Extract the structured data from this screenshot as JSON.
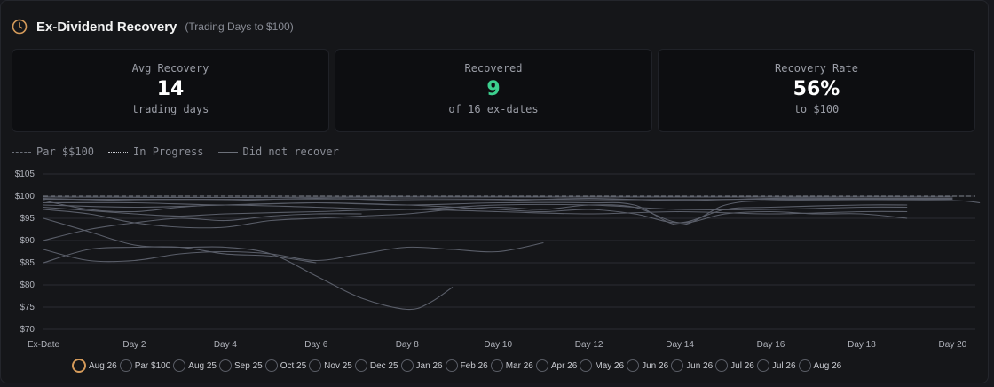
{
  "header": {
    "title": "Ex-Dividend Recovery",
    "subtitle": "(Trading Days to $100)",
    "icon": "clock-icon",
    "icon_color": "#d49a5a"
  },
  "cards": [
    {
      "label": "Avg Recovery",
      "value": "14",
      "sub": "trading days",
      "value_color": "#ffffff"
    },
    {
      "label": "Recovered",
      "value": "9",
      "sub": "of 16 ex-dates",
      "value_color": "#3ccf8e"
    },
    {
      "label": "Recovery Rate",
      "value": "56%",
      "sub": "to $100",
      "value_color": "#ffffff"
    }
  ],
  "legend": [
    {
      "label": "Par $$100",
      "style": "dashed"
    },
    {
      "label": "In Progress",
      "style": "dotted"
    },
    {
      "label": "Did not recover",
      "style": "solid"
    }
  ],
  "chart_data": {
    "type": "line",
    "ylim": [
      70,
      105
    ],
    "yticks": [
      "$105",
      "$100",
      "$95",
      "$90",
      "$85",
      "$80",
      "$75",
      "$70"
    ],
    "xlim": [
      0,
      20.5
    ],
    "xticks": [
      {
        "x": 0,
        "label": "Ex-Date"
      },
      {
        "x": 2,
        "label": "Day 2"
      },
      {
        "x": 4,
        "label": "Day 4"
      },
      {
        "x": 6,
        "label": "Day 6"
      },
      {
        "x": 8,
        "label": "Day 8"
      },
      {
        "x": 10,
        "label": "Day 10"
      },
      {
        "x": 12,
        "label": "Day 12"
      },
      {
        "x": 14,
        "label": "Day 14"
      },
      {
        "x": 16,
        "label": "Day 16"
      },
      {
        "x": 18,
        "label": "Day 18"
      },
      {
        "x": 20,
        "label": "Day 20"
      }
    ],
    "par": 100,
    "series": [
      {
        "values": [
          [
            0,
            95
          ],
          [
            1,
            92
          ],
          [
            2,
            89
          ],
          [
            3,
            88.5
          ],
          [
            4,
            88.5
          ],
          [
            5,
            87
          ],
          [
            6,
            82
          ],
          [
            7,
            77
          ],
          [
            8,
            74.5
          ],
          [
            8.5,
            76
          ],
          [
            9,
            79.5
          ]
        ]
      },
      {
        "values": [
          [
            0,
            88
          ],
          [
            1,
            85.5
          ],
          [
            2,
            85.5
          ],
          [
            3,
            87
          ],
          [
            4,
            87.5
          ],
          [
            5,
            87
          ],
          [
            6,
            85.5
          ],
          [
            7,
            87
          ],
          [
            8,
            88.5
          ],
          [
            9,
            88
          ],
          [
            10,
            87.5
          ],
          [
            11,
            89.5
          ]
        ]
      },
      {
        "values": [
          [
            0,
            85
          ],
          [
            1,
            88
          ],
          [
            2,
            88.5
          ],
          [
            3,
            88.5
          ],
          [
            4,
            87
          ],
          [
            5,
            86.5
          ],
          [
            6,
            85
          ]
        ]
      },
      {
        "values": [
          [
            0,
            90
          ],
          [
            1,
            92.5
          ],
          [
            2,
            94
          ],
          [
            3,
            95
          ],
          [
            4,
            94.5
          ],
          [
            5,
            95.5
          ],
          [
            6,
            96
          ],
          [
            7,
            96
          ]
        ]
      },
      {
        "values": [
          [
            0,
            97
          ],
          [
            1,
            96
          ],
          [
            2,
            94
          ],
          [
            3,
            93
          ],
          [
            4,
            93
          ],
          [
            5,
            94.5
          ],
          [
            6,
            95
          ],
          [
            7,
            95.5
          ],
          [
            8,
            96
          ],
          [
            9,
            97
          ],
          [
            10,
            97.5
          ],
          [
            11,
            97
          ],
          [
            12,
            98
          ],
          [
            13,
            97.5
          ],
          [
            14,
            94
          ],
          [
            15,
            96
          ],
          [
            16,
            96.5
          ],
          [
            17,
            96
          ],
          [
            18,
            96
          ],
          [
            19,
            95
          ]
        ]
      },
      {
        "values": [
          [
            0,
            98
          ],
          [
            2,
            97.5
          ],
          [
            4,
            98
          ],
          [
            6,
            98.5
          ],
          [
            8,
            98
          ],
          [
            10,
            98.5
          ],
          [
            12,
            98.5
          ],
          [
            13,
            98
          ],
          [
            14,
            93.5
          ],
          [
            15,
            98
          ],
          [
            16,
            99
          ],
          [
            18,
            99
          ],
          [
            20,
            99
          ],
          [
            21,
            98.5
          ]
        ]
      },
      {
        "values": [
          [
            0,
            99.5
          ],
          [
            2,
            99
          ],
          [
            4,
            99
          ],
          [
            6,
            99.5
          ],
          [
            8,
            99
          ],
          [
            10,
            99
          ],
          [
            12,
            99.5
          ],
          [
            14,
            99
          ],
          [
            16,
            99.5
          ],
          [
            18,
            99.5
          ],
          [
            20,
            99.5
          ]
        ]
      },
      {
        "values": [
          [
            0,
            99
          ],
          [
            1,
            97
          ],
          [
            2,
            96.5
          ],
          [
            3,
            97.5
          ],
          [
            4,
            98
          ],
          [
            6,
            97.5
          ],
          [
            8,
            97
          ],
          [
            10,
            98
          ],
          [
            12,
            98
          ],
          [
            14,
            97
          ],
          [
            16,
            97
          ],
          [
            18,
            97.5
          ],
          [
            19,
            97.5
          ]
        ]
      },
      {
        "values": [
          [
            0,
            98.5
          ],
          [
            2,
            98.5
          ],
          [
            4,
            98
          ],
          [
            6,
            98.5
          ],
          [
            8,
            98
          ],
          [
            10,
            97
          ],
          [
            11,
            96.5
          ],
          [
            12,
            97
          ],
          [
            13,
            96
          ],
          [
            14,
            94
          ],
          [
            15,
            97
          ],
          [
            16,
            97.5
          ],
          [
            18,
            98
          ],
          [
            19,
            98
          ]
        ]
      },
      {
        "values": [
          [
            0,
            99.8
          ],
          [
            4,
            99.7
          ],
          [
            8,
            99.8
          ],
          [
            12,
            99.8
          ],
          [
            16,
            99.8
          ],
          [
            20,
            99.8
          ]
        ]
      },
      {
        "values": [
          [
            0,
            99.3
          ],
          [
            4,
            99.3
          ],
          [
            8,
            99.4
          ],
          [
            12,
            99.2
          ],
          [
            16,
            99.3
          ],
          [
            20,
            99.3
          ]
        ]
      },
      {
        "values": [
          [
            0,
            97.5
          ],
          [
            2,
            96
          ],
          [
            3,
            95.5
          ],
          [
            4,
            96
          ],
          [
            6,
            96.5
          ],
          [
            8,
            97
          ],
          [
            10,
            96.5
          ],
          [
            12,
            96
          ],
          [
            14,
            96.5
          ],
          [
            16,
            96
          ],
          [
            18,
            96.5
          ],
          [
            19,
            96.5
          ]
        ]
      }
    ],
    "colors": {
      "line": "#5a5e69",
      "grid": "#2a2c33",
      "par": "#6c7079",
      "tick": "#b0b3bb"
    }
  },
  "selector": [
    {
      "label": "Aug 26",
      "active": true,
      "ring": "#d49a5a"
    },
    {
      "label": "Par $100",
      "active": false
    },
    {
      "label": "Aug 25",
      "active": false
    },
    {
      "label": "Sep 25",
      "active": false
    },
    {
      "label": "Oct 25",
      "active": false
    },
    {
      "label": "Nov 25",
      "active": false
    },
    {
      "label": "Dec 25",
      "active": false
    },
    {
      "label": "Jan 26",
      "active": false
    },
    {
      "label": "Feb 26",
      "active": false
    },
    {
      "label": "Mar 26",
      "active": false
    },
    {
      "label": "Apr 26",
      "active": false
    },
    {
      "label": "May 26",
      "active": false
    },
    {
      "label": "Jun 26",
      "active": false
    },
    {
      "label": "Jun 26",
      "active": false
    },
    {
      "label": "Jul 26",
      "active": false
    },
    {
      "label": "Jul 26",
      "active": false
    },
    {
      "label": "Aug 26",
      "active": false
    }
  ]
}
